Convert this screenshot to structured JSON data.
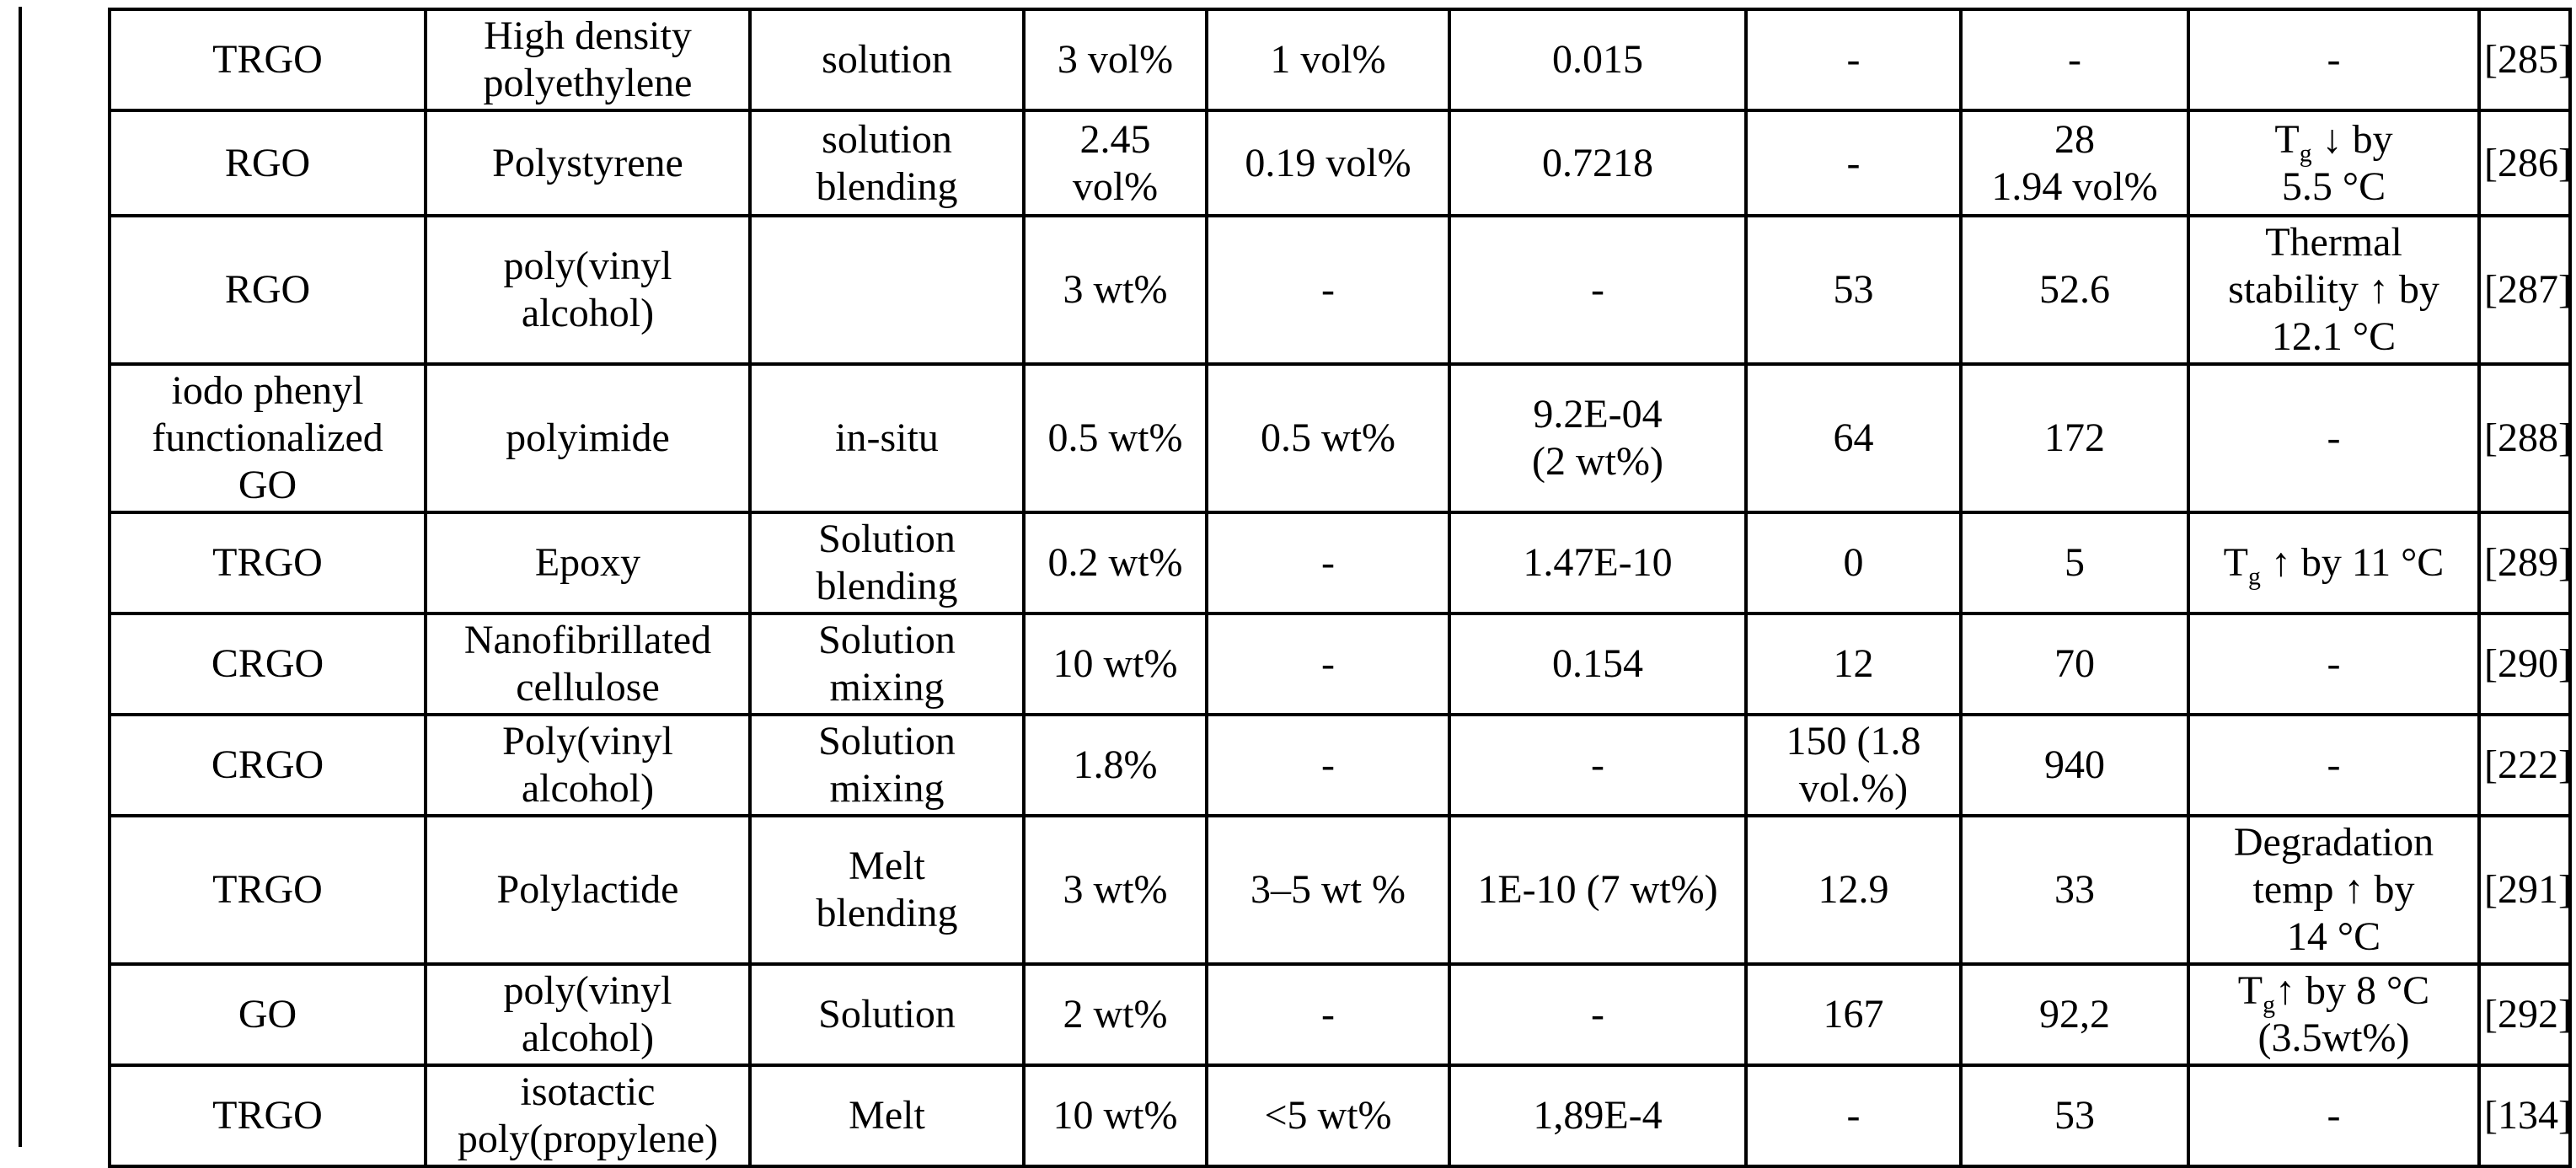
{
  "colors": {
    "background": "#ffffff",
    "text": "#000000",
    "border": "#000000"
  },
  "table": {
    "rows": [
      [
        "TRGO",
        "High density\npolyethylene",
        "solution",
        "3 vol%",
        "1 vol%",
        "0.015",
        "-",
        "-",
        "-",
        "[285]"
      ],
      [
        "RGO",
        "Polystyrene",
        "solution\nblending",
        "2.45\nvol%",
        "0.19 vol%",
        "0.7218",
        "-",
        "28\n1.94 vol%",
        "Tg ↓ by\n5.5 °C",
        "[286]"
      ],
      [
        "RGO",
        "poly(vinyl\nalcohol)",
        "",
        "3 wt%",
        "-",
        "-",
        "53",
        "52.6",
        "Thermal\nstability ↑ by\n12.1 °C",
        "[287]"
      ],
      [
        "iodo phenyl\nfunctionalized\nGO",
        "polyimide",
        "in-situ",
        "0.5 wt%",
        "0.5 wt%",
        "9.2E-04\n(2 wt%)",
        "64",
        "172",
        "-",
        "[288]"
      ],
      [
        "TRGO",
        "Epoxy",
        "Solution\nblending",
        "0.2 wt%",
        "-",
        "1.47E-10",
        "0",
        "5",
        "Tg ↑ by 11 °C",
        "[289]"
      ],
      [
        "CRGO",
        "Nanofibrillated\ncellulose",
        "Solution\nmixing",
        "10 wt%",
        "-",
        "0.154",
        "12",
        "70",
        "-",
        "[290]"
      ],
      [
        "CRGO",
        "Poly(vinyl\nalcohol)",
        "Solution\nmixing",
        "1.8%",
        "-",
        "-",
        "150 (1.8\nvol.%)",
        "940",
        "-",
        "[222]"
      ],
      [
        "TRGO",
        "Polylactide",
        "Melt\nblending",
        "3 wt%",
        "3–5 wt %",
        "1E-10 (7 wt%)",
        "12.9",
        "33",
        "Degradation\ntemp ↑ by\n14 °C",
        "[291]"
      ],
      [
        "GO",
        "poly(vinyl\nalcohol)",
        "Solution",
        "2 wt%",
        "-",
        "-",
        "167",
        "92,2",
        "Tg↑ by 8 °C\n(3.5wt%)",
        "[292]"
      ],
      [
        "TRGO",
        "isotactic\npoly(propylene)",
        "Melt",
        "10 wt%",
        "<5 wt%",
        "1,89E-4",
        "-",
        "53",
        "-",
        "[134]"
      ]
    ]
  }
}
